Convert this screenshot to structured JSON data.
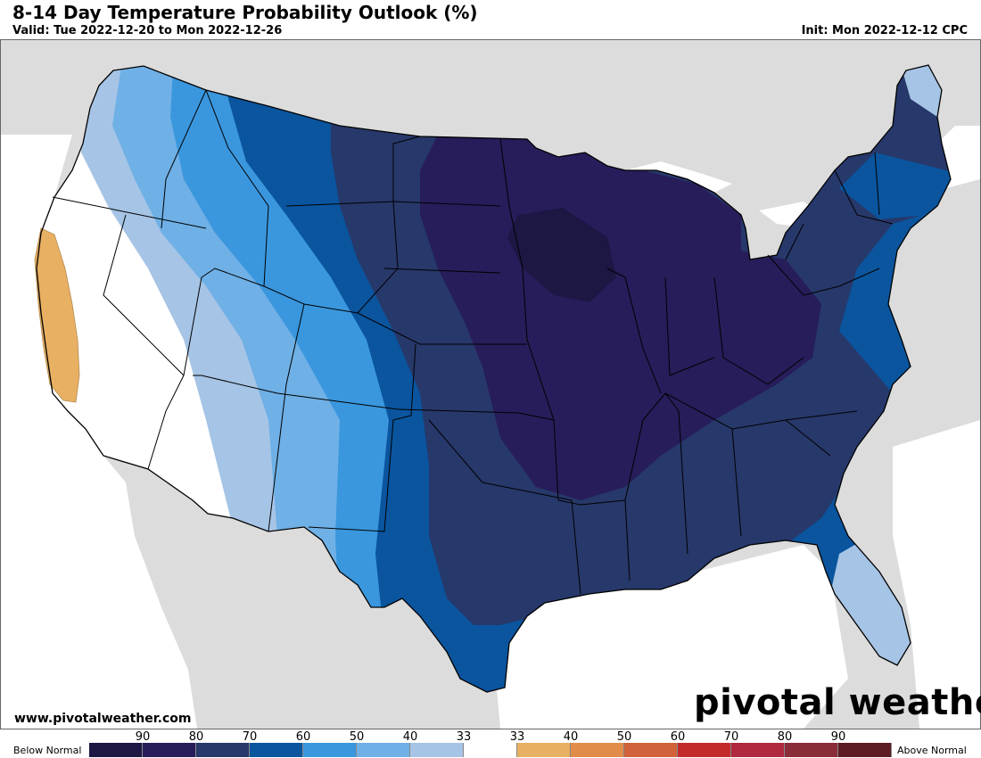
{
  "header": {
    "title": "8-14 Day Temperature Probability Outlook (%)",
    "valid": "Valid: Tue 2022-12-20 to Mon 2022-12-26",
    "init": "Init: Mon 2022-12-12 CPC"
  },
  "footer": {
    "site_url": "www.pivotalweather.com",
    "brand": "pivotal weather"
  },
  "legend": {
    "left_label": "Below Normal",
    "right_label": "Above Normal",
    "tick_labels": [
      "90",
      "80",
      "70",
      "60",
      "50",
      "40",
      "33",
      "33",
      "40",
      "50",
      "60",
      "70",
      "80",
      "90"
    ],
    "colors": [
      "#1c1743",
      "#271d5a",
      "#27386a",
      "#0a559e",
      "#3a97de",
      "#6fb0e6",
      "#a6c4e6",
      "#ffffff",
      "#e8b062",
      "#e18d49",
      "#d1633a",
      "#c32b2a",
      "#b0293e",
      "#8b2c39",
      "#5d1c24"
    ]
  },
  "map_colors": {
    "background_land": "#dcdcdc",
    "water": "#ffffff",
    "below_33": "#a6c4e6",
    "below_40": "#6fb0e6",
    "below_50": "#3a97de",
    "below_60": "#0a559e",
    "below_70": "#27386a",
    "below_80": "#271d5a",
    "below_90": "#1c1743",
    "above_40": "#e8b062"
  }
}
